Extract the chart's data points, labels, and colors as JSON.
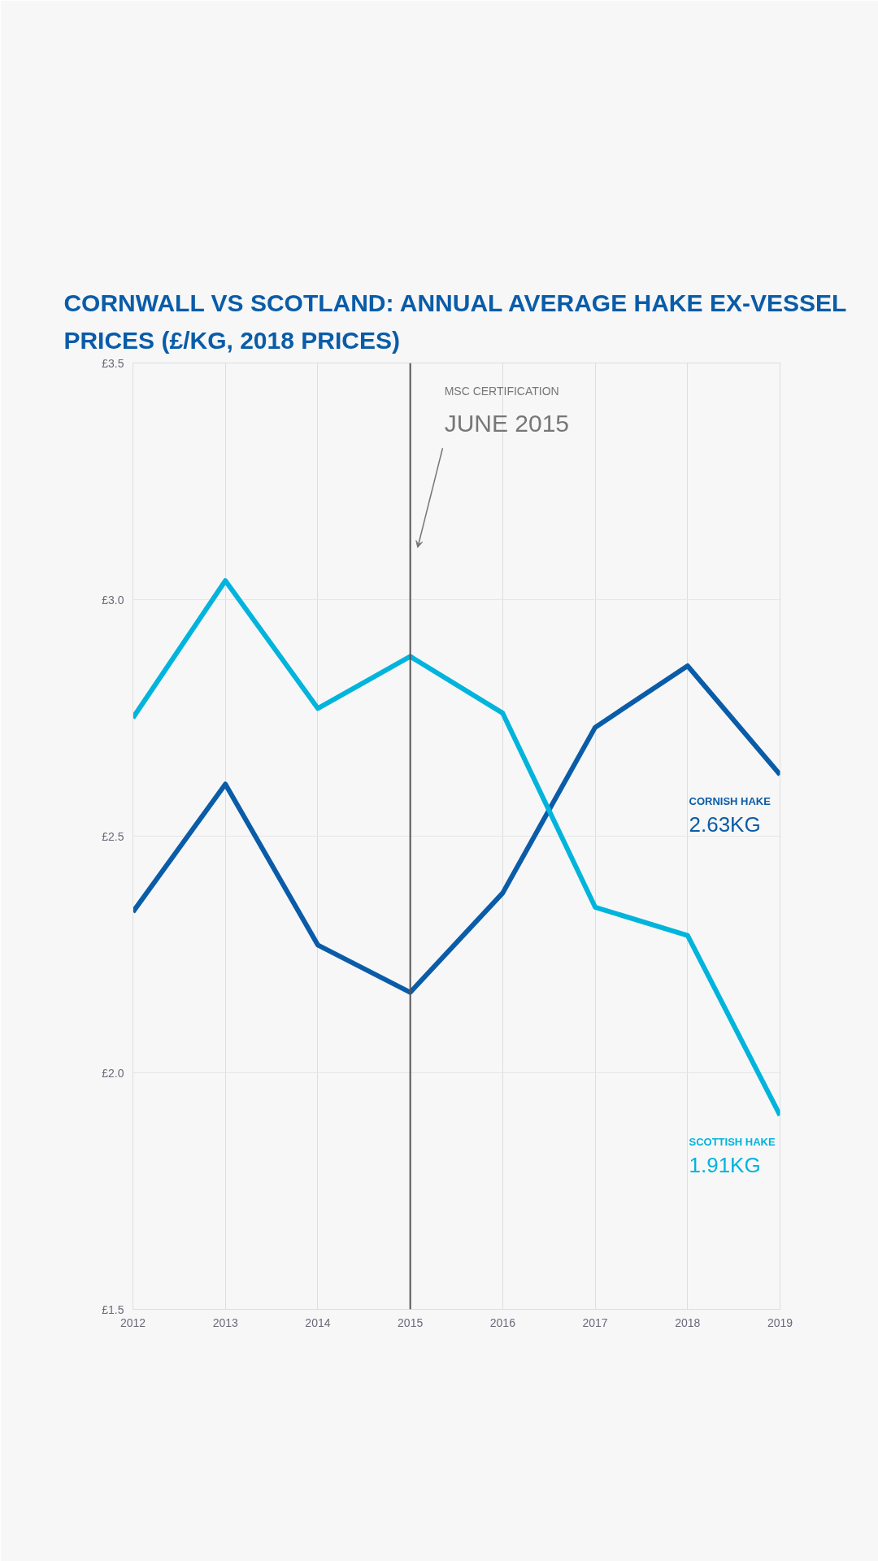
{
  "chart_data": {
    "type": "line",
    "title": "CORNWALL VS SCOTLAND: ANNUAL AVERAGE HAKE EX-VESSEL PRICES (£/KG, 2018 PRICES)",
    "x": [
      2012,
      2013,
      2014,
      2015,
      2016,
      2017,
      2018,
      2019
    ],
    "series": [
      {
        "name": "CORNISH HAKE",
        "color": "#0a5ca8",
        "values": [
          2.34,
          2.61,
          2.27,
          2.17,
          2.38,
          2.73,
          2.86,
          2.63
        ],
        "value_labels": [
          null,
          null,
          null,
          null,
          null,
          null,
          null,
          "2.63KG"
        ]
      },
      {
        "name": "SCOTTISH HAKE",
        "color": "#00b4dc",
        "values": [
          2.75,
          3.04,
          2.77,
          2.88,
          2.76,
          2.35,
          2.29,
          1.91
        ],
        "value_labels": [
          null,
          null,
          null,
          null,
          null,
          null,
          null,
          "1.91KG"
        ]
      }
    ],
    "xlim": [
      2012,
      2019
    ],
    "ylim": [
      1.5,
      3.5
    ],
    "xticks": [
      2012,
      2013,
      2014,
      2015,
      2016,
      2017,
      2018,
      2019
    ],
    "yticks": [
      {
        "value": 1.5,
        "label": "£1.5"
      },
      {
        "value": 2.0,
        "label": "£2.0"
      },
      {
        "value": 2.5,
        "label": "£2.5"
      },
      {
        "value": 3.0,
        "label": "£3.0"
      },
      {
        "value": 3.5,
        "label": "£3.5"
      }
    ],
    "ref_lines": [
      {
        "axis": "x",
        "value": 2015,
        "label": "JUNE 2015",
        "color": "#555555"
      }
    ],
    "annotations": [
      "MSC CERTIFICATION"
    ],
    "grid": true,
    "legend": false,
    "marker": "none",
    "line_style": "solid"
  }
}
